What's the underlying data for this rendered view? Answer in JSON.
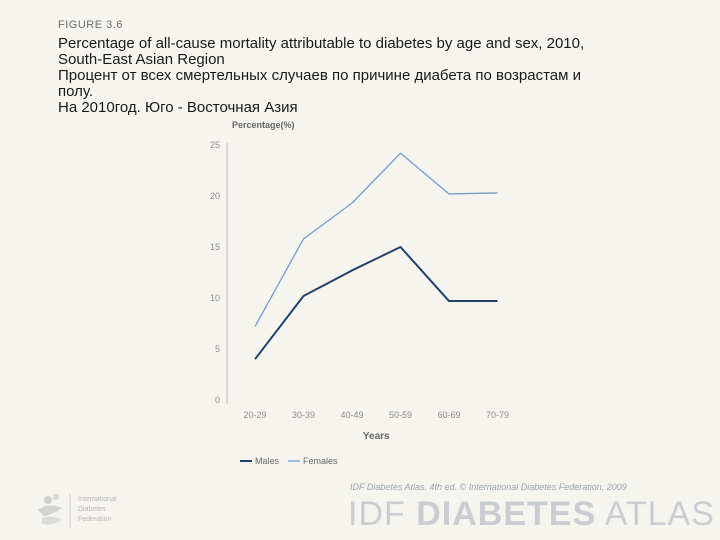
{
  "figure_label": "FIGURE 3.6",
  "title_lines": [
    "Percentage of all-cause mortality attributable to diabetes by age and sex, 2010,",
    "South-East Asian Region",
    "Процент от всех смертельных случаев по причине диабета по возрастам и",
    "полу.",
    "На 2010год. Юго - Восточная Азия"
  ],
  "chart_data": {
    "type": "line",
    "ylabel": "Percentage(%)",
    "xlabel": "Years",
    "categories": [
      "20-29",
      "30-39",
      "40-49",
      "50-59",
      "60-69",
      "70-79"
    ],
    "yticks": [
      0,
      5,
      10,
      15,
      20,
      25
    ],
    "ylim": [
      0,
      25
    ],
    "grid": false,
    "legend_position": "bottom-left",
    "series": [
      {
        "name": "Males",
        "values": [
          4.0,
          10.2,
          12.7,
          15.0,
          9.7,
          9.7
        ],
        "color": "#22416b"
      },
      {
        "name": "Females",
        "values": [
          7.2,
          15.8,
          19.3,
          24.2,
          20.2,
          20.3
        ],
        "color": "#7a9ac8"
      }
    ]
  },
  "footer": {
    "credit": "IDF Diabetes Atlas, 4th ed. © International Diabetes Federation, 2009",
    "brand_left": "IDF ",
    "brand_mid": "DIABETES",
    "brand_right": " ATLAS",
    "logo_lines": [
      "International",
      "Diabetes",
      "Federation"
    ]
  },
  "colors": {
    "axis": "#bdbdbd",
    "tick_text": "#8c8c8c",
    "label_text": "#666666"
  }
}
